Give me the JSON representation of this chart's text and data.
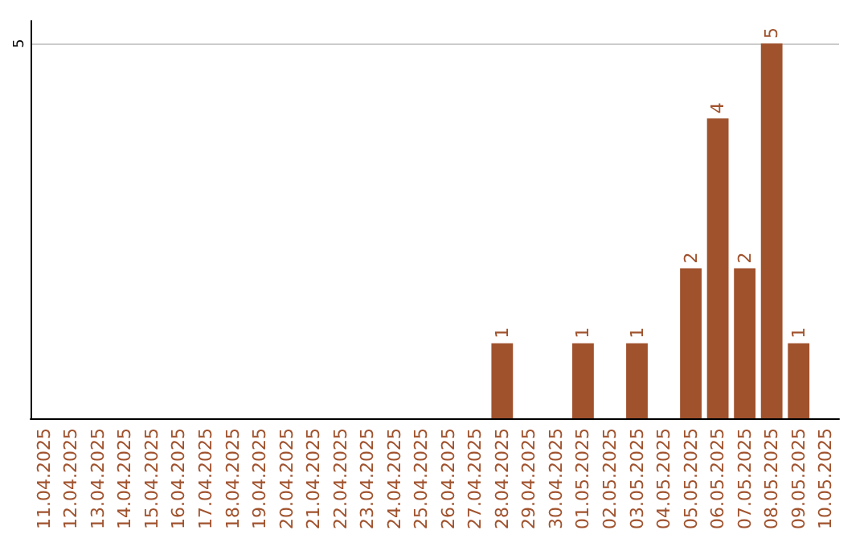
{
  "chart_data": {
    "type": "bar",
    "categories": [
      "11.04.2025",
      "12.04.2025",
      "13.04.2025",
      "14.04.2025",
      "15.04.2025",
      "16.04.2025",
      "17.04.2025",
      "18.04.2025",
      "19.04.2025",
      "20.04.2025",
      "21.04.2025",
      "22.04.2025",
      "23.04.2025",
      "24.04.2025",
      "25.04.2025",
      "26.04.2025",
      "27.04.2025",
      "28.04.2025",
      "29.04.2025",
      "30.04.2025",
      "01.05.2025",
      "02.05.2025",
      "03.05.2025",
      "04.05.2025",
      "05.05.2025",
      "06.05.2025",
      "07.05.2025",
      "08.05.2025",
      "09.05.2025",
      "10.05.2025"
    ],
    "values": [
      null,
      null,
      null,
      null,
      null,
      null,
      null,
      null,
      null,
      null,
      null,
      null,
      null,
      null,
      null,
      null,
      null,
      1,
      null,
      null,
      1,
      null,
      1,
      null,
      2,
      4,
      2,
      5,
      1,
      null
    ],
    "color": "#a0522d",
    "ylim": [
      0,
      5.3
    ],
    "yticks": [
      5
    ],
    "grid": "y",
    "data_labels": true
  }
}
